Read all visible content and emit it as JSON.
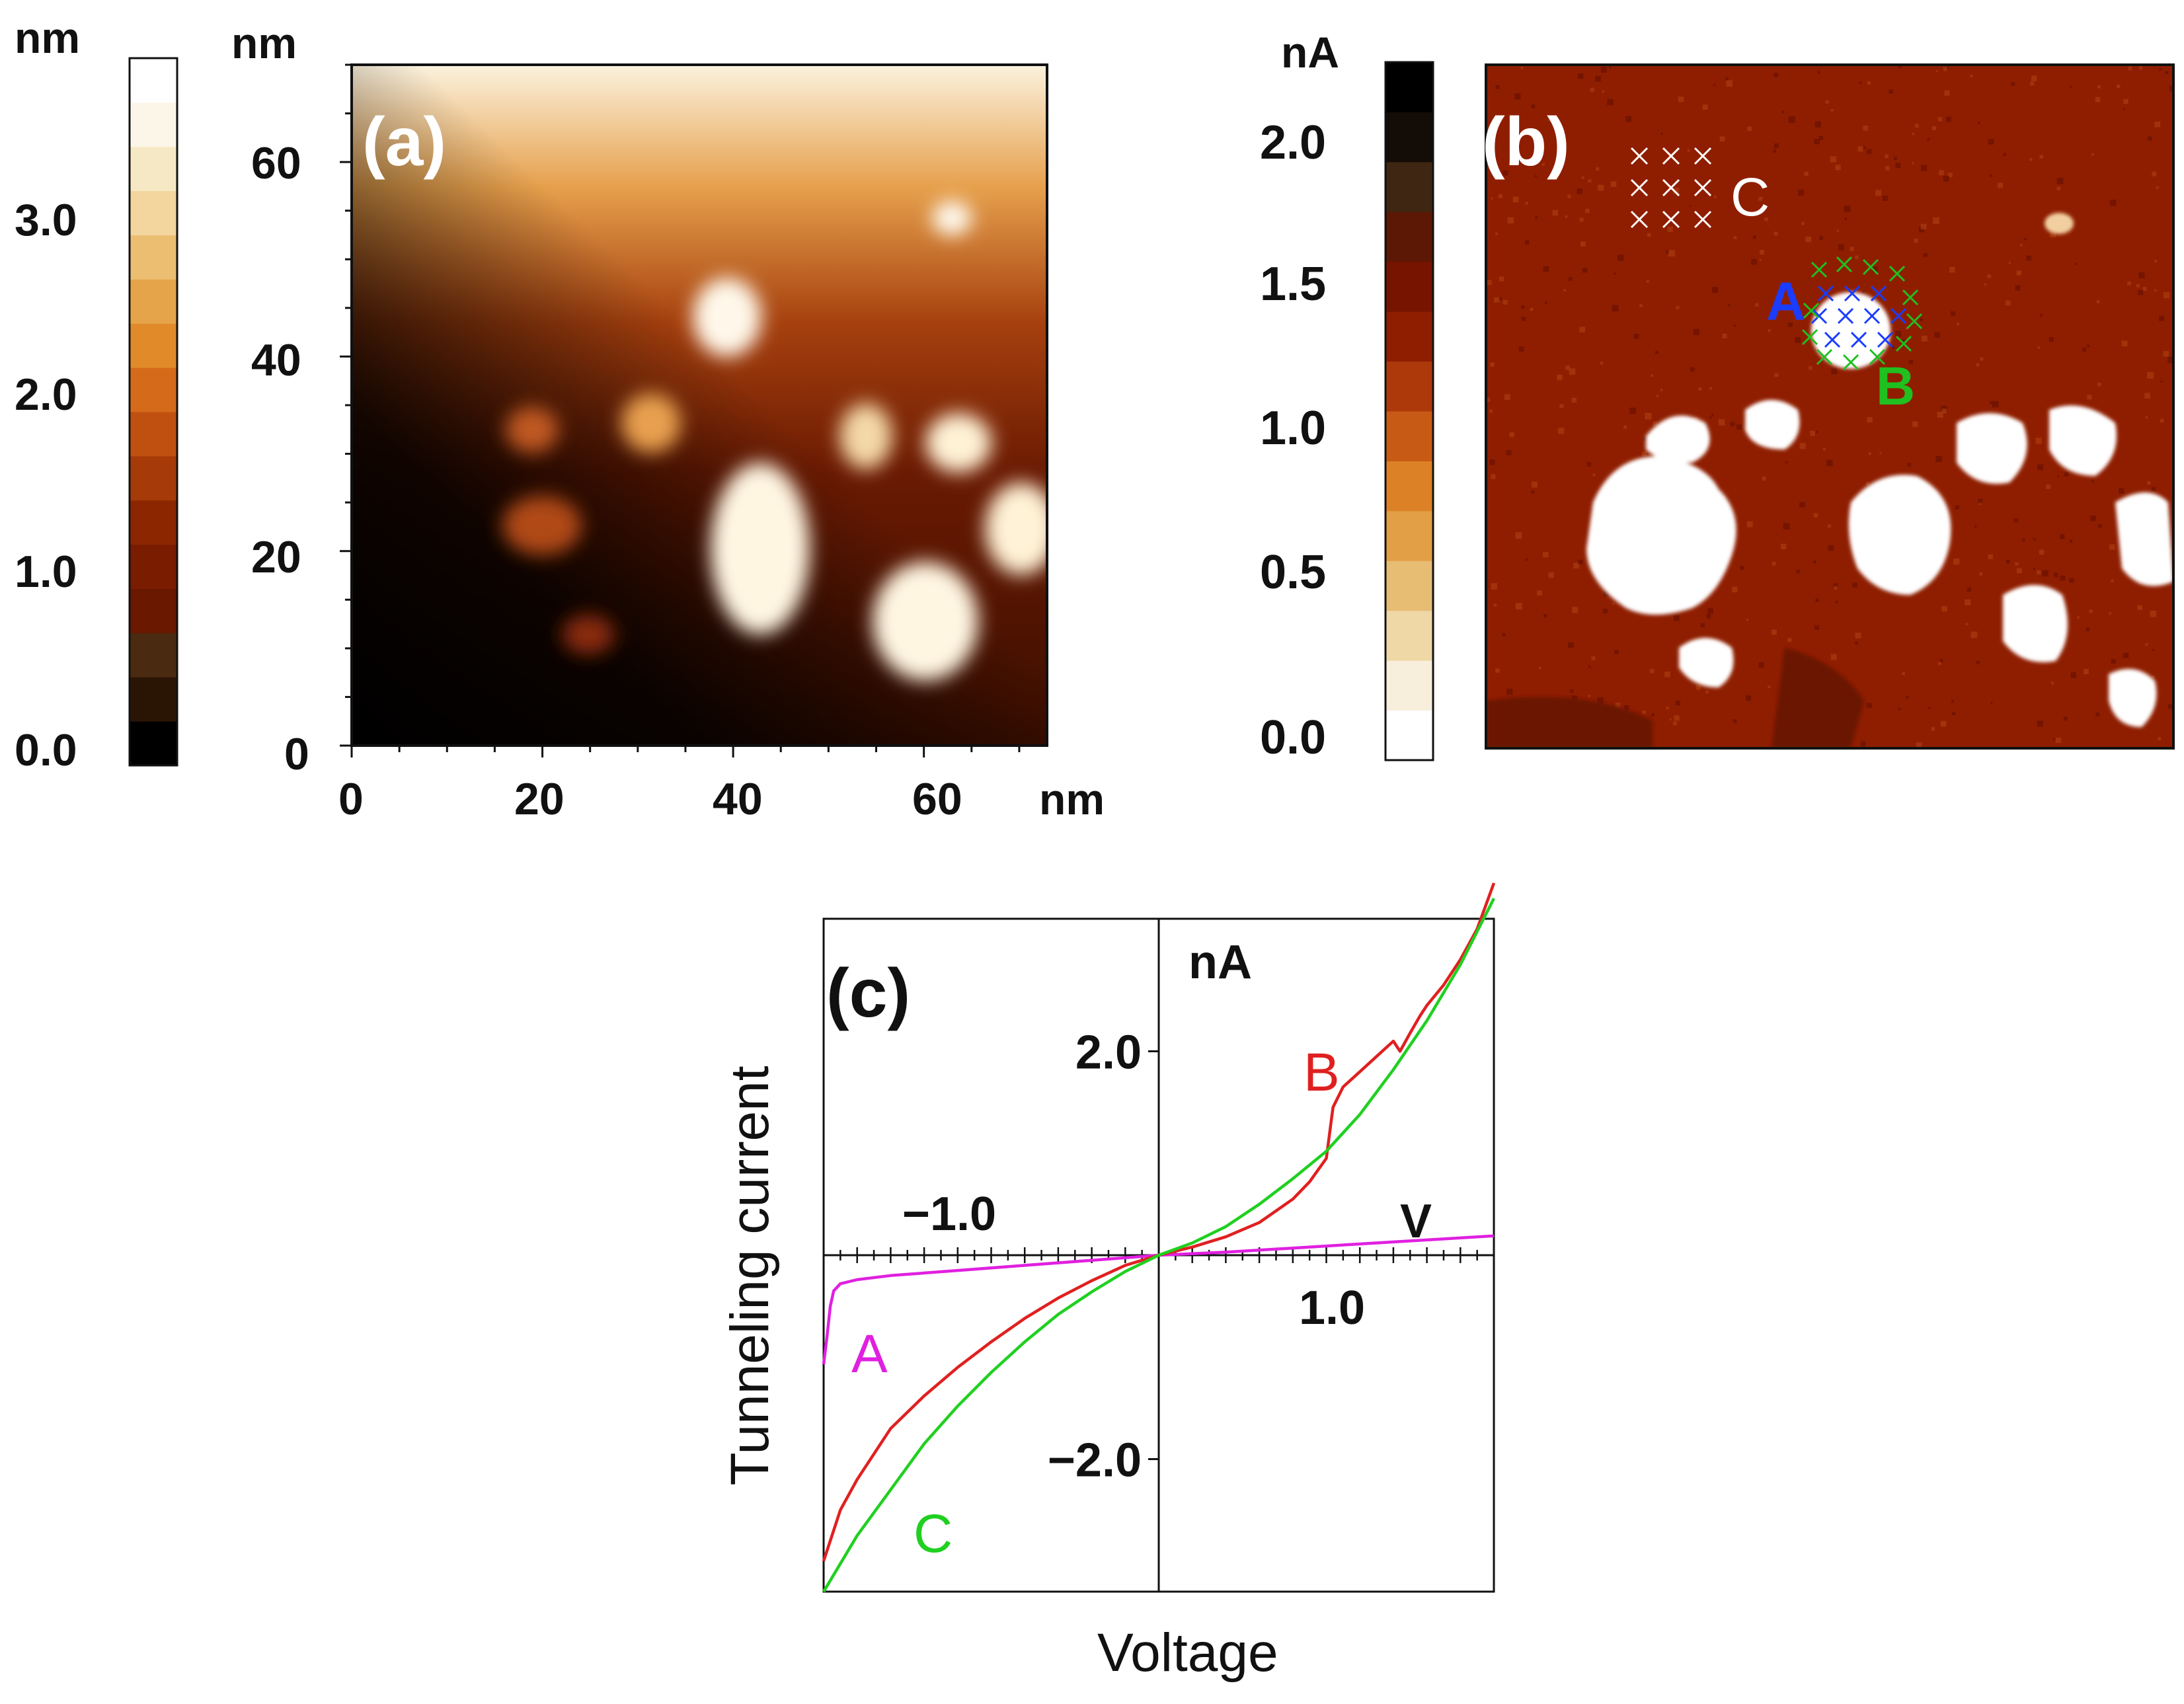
{
  "colors": {
    "height_scale": [
      "#000000",
      "#2a1505",
      "#4a2a10",
      "#6a1800",
      "#7a1c00",
      "#8c2600",
      "#a63a08",
      "#c05010",
      "#d56a1a",
      "#e08a2a",
      "#e6a44a",
      "#ecbe72",
      "#f2d69e",
      "#f6e8c4",
      "#fbf6e8",
      "#ffffff"
    ],
    "current_scale": [
      "#ffffff",
      "#f8eedc",
      "#efd7a6",
      "#e7bc73",
      "#e39f45",
      "#dd8126",
      "#c75b16",
      "#ad380a",
      "#8f1e00",
      "#761400",
      "#5c1804",
      "#3e2612",
      "#140c06",
      "#000000"
    ],
    "curve_A": "#e020e0",
    "curve_B": "#e02020",
    "curve_C": "#20d020",
    "marker_A": "#1a3cff",
    "marker_B": "#20c020",
    "marker_C": "#ffffff"
  },
  "panel_a": {
    "label": "(a)",
    "colorbar": {
      "unit": "nm",
      "ticks": [
        "3.0",
        "2.0",
        "1.0",
        "0.0"
      ]
    },
    "y_unit": "nm",
    "x_unit": "nm",
    "y_ticks": [
      "60",
      "40",
      "20",
      "0"
    ],
    "x_ticks": [
      "0",
      "20",
      "40",
      "60"
    ]
  },
  "panel_b": {
    "label": "(b)",
    "colorbar": {
      "unit": "nA",
      "ticks": [
        "2.0",
        "1.5",
        "1.0",
        "0.5",
        "0.0"
      ]
    },
    "marker_labels": {
      "A": "A",
      "B": "B",
      "C": "C"
    }
  },
  "chart_data": {
    "type": "line",
    "panel_label": "(c)",
    "title": "",
    "xlabel": "Voltage",
    "ylabel": "Tunneling current",
    "x_unit": "V",
    "y_unit": "nA",
    "xlim": [
      -1.0,
      1.0
    ],
    "ylim": [
      -3.3,
      3.3
    ],
    "x_tick_labels": [
      "−1.0",
      "1.0"
    ],
    "y_tick_labels": [
      "2.0",
      "−2.0"
    ],
    "x_tick_values": [
      -1.0,
      1.0
    ],
    "y_tick_values": [
      2.0,
      -2.0
    ],
    "series": [
      {
        "name": "A",
        "x": [
          -1.0,
          -0.99,
          -0.98,
          -0.97,
          -0.95,
          -0.9,
          -0.8,
          -0.6,
          -0.4,
          -0.2,
          0.0,
          0.2,
          0.4,
          0.6,
          0.8,
          1.0
        ],
        "y": [
          -1.07,
          -0.8,
          -0.5,
          -0.35,
          -0.28,
          -0.24,
          -0.2,
          -0.15,
          -0.1,
          -0.05,
          0.0,
          0.03,
          0.07,
          0.11,
          0.15,
          0.19
        ]
      },
      {
        "name": "B",
        "x": [
          -1.0,
          -0.95,
          -0.9,
          -0.8,
          -0.7,
          -0.6,
          -0.5,
          -0.4,
          -0.3,
          -0.2,
          -0.1,
          0.0,
          0.1,
          0.2,
          0.3,
          0.4,
          0.45,
          0.5,
          0.52,
          0.55,
          0.6,
          0.65,
          0.7,
          0.72,
          0.75,
          0.78,
          0.8,
          0.85,
          0.9,
          0.95,
          1.0
        ],
        "y": [
          -3.0,
          -2.5,
          -2.2,
          -1.7,
          -1.38,
          -1.1,
          -0.85,
          -0.62,
          -0.42,
          -0.25,
          -0.1,
          0.0,
          0.08,
          0.18,
          0.32,
          0.55,
          0.72,
          0.95,
          1.45,
          1.65,
          1.8,
          1.95,
          2.1,
          2.0,
          2.18,
          2.35,
          2.45,
          2.65,
          2.9,
          3.2,
          3.65
        ]
      },
      {
        "name": "C",
        "x": [
          -1.0,
          -0.9,
          -0.8,
          -0.7,
          -0.6,
          -0.5,
          -0.4,
          -0.3,
          -0.2,
          -0.1,
          0.0,
          0.1,
          0.2,
          0.3,
          0.4,
          0.5,
          0.6,
          0.7,
          0.8,
          0.9,
          1.0
        ],
        "y": [
          -3.3,
          -2.75,
          -2.3,
          -1.85,
          -1.48,
          -1.15,
          -0.85,
          -0.58,
          -0.36,
          -0.16,
          0.0,
          0.12,
          0.28,
          0.5,
          0.75,
          1.02,
          1.38,
          1.82,
          2.3,
          2.85,
          3.5
        ]
      }
    ],
    "curve_labels": {
      "A": "A",
      "B": "B",
      "C": "C"
    }
  }
}
